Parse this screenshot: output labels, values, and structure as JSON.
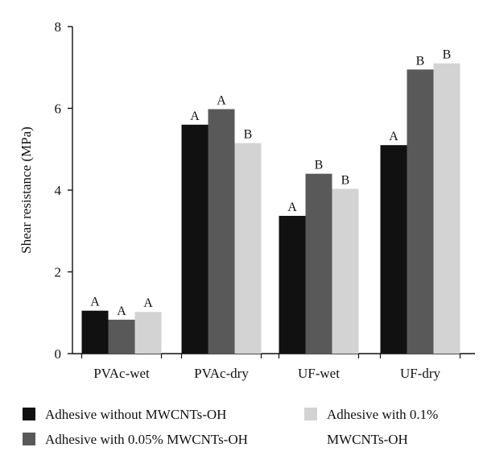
{
  "chart_data": {
    "type": "bar",
    "title": "",
    "xlabel": "",
    "ylabel": "Shear resistance (MPa)",
    "ylim": [
      0,
      8
    ],
    "yticks": [
      0,
      2,
      4,
      6,
      8
    ],
    "grid": false,
    "legend_position": "bottom",
    "categories": [
      "PVAc-wet",
      "PVAc-dry",
      "UF-wet",
      "UF-dry"
    ],
    "series": [
      {
        "name": "Adhesive without MWCNTs-OH",
        "color": "#111111",
        "values": [
          1.05,
          5.6,
          3.37,
          5.1
        ],
        "labels": [
          "A",
          "A",
          "A",
          "A"
        ]
      },
      {
        "name": "Adhesive with 0.05% MWCNTs-OH",
        "color": "#595959",
        "values": [
          0.83,
          5.98,
          4.4,
          6.95
        ],
        "labels": [
          "A",
          "A",
          "B",
          "B"
        ]
      },
      {
        "name": "Adhesive with 0.1% MWCNTs-OH",
        "name_lines": [
          "Adhesive with 0.1%",
          "MWCNTs-OH"
        ],
        "color": "#d3d3d3",
        "values": [
          1.02,
          5.15,
          4.03,
          7.1
        ],
        "labels": [
          "A",
          "B",
          "B",
          "B"
        ]
      }
    ]
  }
}
